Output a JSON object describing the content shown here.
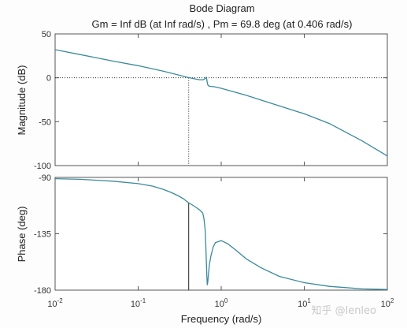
{
  "chart_data": {
    "type": "line",
    "title": "Bode Diagram",
    "subtitle": "Gm = Inf dB (at Inf rad/s) ,  Pm = 69.8 deg (at 0.406 rad/s)",
    "xlabel": "Frequency  (rad/s)",
    "x_scale": "log",
    "xlim": [
      0.01,
      100
    ],
    "x_ticks": [
      0.01,
      0.1,
      1,
      10,
      100
    ],
    "x_tick_labels": [
      {
        "base": "10",
        "exp": "-2"
      },
      {
        "base": "10",
        "exp": "-1"
      },
      {
        "base": "10",
        "exp": "0"
      },
      {
        "base": "10",
        "exp": "1"
      },
      {
        "base": "10",
        "exp": "2"
      }
    ],
    "line_color": "#3a8a9c",
    "panels": [
      {
        "name": "magnitude",
        "ylabel": "Magnitude (dB)",
        "ylim": [
          -100,
          50
        ],
        "y_ticks": [
          -100,
          -50,
          0,
          50
        ],
        "y_tick_labels": [
          "-100",
          "-50",
          "0",
          "50"
        ],
        "reference_line_y": 0,
        "marker_x": 0.406,
        "marker_from_y": 0,
        "marker_style": "dotted",
        "series": [
          {
            "x": [
              0.01,
              0.02,
              0.05,
              0.1,
              0.2,
              0.3,
              0.4,
              0.5,
              0.55,
              0.6,
              0.63,
              0.65,
              0.66,
              0.67,
              0.68,
              0.69,
              0.7,
              0.72,
              0.75,
              0.8,
              0.9,
              1,
              2,
              5,
              10,
              20,
              50,
              100
            ],
            "y": [
              32,
              26.5,
              19,
              13.8,
              7.5,
              3.4,
              0.3,
              -1.6,
              -2.2,
              -2.3,
              -1.5,
              0,
              0.5,
              -2,
              -5.5,
              -8,
              -9,
              -9.5,
              -9.8,
              -10,
              -11,
              -12,
              -20,
              -32,
              -41,
              -52,
              -72,
              -89
            ]
          }
        ]
      },
      {
        "name": "phase",
        "ylabel": "Phase (deg)",
        "ylim": [
          -180,
          -90
        ],
        "y_ticks": [
          -180,
          -135,
          -90
        ],
        "y_tick_labels": [
          "-180",
          "-135",
          "-90"
        ],
        "marker_x": 0.406,
        "marker_from_y": -110.2,
        "marker_style": "solid",
        "series": [
          {
            "x": [
              0.01,
              0.02,
              0.05,
              0.1,
              0.15,
              0.2,
              0.25,
              0.3,
              0.35,
              0.4,
              0.45,
              0.5,
              0.55,
              0.6,
              0.62,
              0.64,
              0.65,
              0.66,
              0.67,
              0.68,
              0.69,
              0.7,
              0.72,
              0.75,
              0.8,
              0.85,
              1,
              1.2,
              1.5,
              2,
              3,
              5,
              10,
              20,
              50,
              100
            ],
            "y": [
              -91,
              -91.5,
              -93,
              -95,
              -97,
              -99.5,
              -102,
              -104.5,
              -107,
              -110,
              -112,
              -114,
              -116,
              -118.5,
              -123,
              -132,
              -142,
              -155,
              -168,
              -176,
              -173,
              -168,
              -160,
              -153,
              -145.5,
              -142,
              -140.5,
              -143,
              -148,
              -155,
              -162,
              -169,
              -174,
              -177,
              -179,
              -179.5
            ]
          }
        ]
      }
    ]
  },
  "watermark": "知乎 @lenleo"
}
